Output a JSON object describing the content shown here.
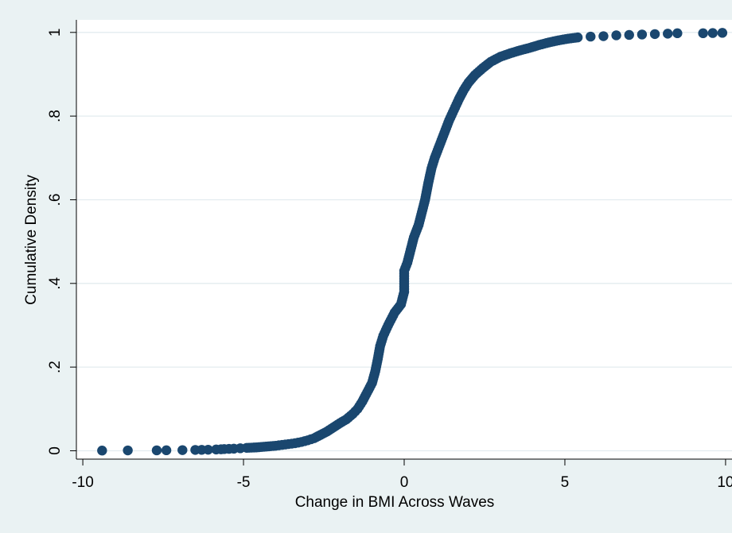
{
  "chart_data": {
    "type": "scatter",
    "title": "",
    "xlabel": "Change in BMI Across Waves",
    "ylabel": "Cumulative Density",
    "xlim": [
      -10.2,
      10.2
    ],
    "ylim": [
      -0.02,
      1.03
    ],
    "x_ticks": [
      -10,
      -5,
      0,
      5,
      10
    ],
    "x_tick_labels": [
      "-10",
      "-5",
      "0",
      "5",
      "10"
    ],
    "y_ticks": [
      0,
      0.2,
      0.4,
      0.6,
      0.8,
      1
    ],
    "y_tick_labels": [
      "0",
      ".2",
      ".4",
      ".6",
      ".8",
      "1"
    ],
    "grid": true,
    "legend": "none",
    "colors": {
      "background": "#eaf2f3",
      "plot_area": "#ffffff",
      "grid": "#e3ecef",
      "marker": "#1a476f"
    },
    "series": [
      {
        "points": [
          [
            -9.4,
            0.0005
          ],
          [
            -8.6,
            0.0008
          ],
          [
            -7.7,
            0.001
          ],
          [
            -7.4,
            0.0012
          ],
          [
            -6.9,
            0.0015
          ],
          [
            -6.5,
            0.002
          ],
          [
            -6.3,
            0.0022
          ],
          [
            -6.1,
            0.0025
          ],
          [
            -5.85,
            0.003
          ],
          [
            -5.7,
            0.0035
          ],
          [
            -5.6,
            0.004
          ],
          [
            -5.45,
            0.0045
          ],
          [
            -5.3,
            0.005
          ],
          [
            -5.1,
            0.006
          ],
          [
            -4.9,
            0.007
          ],
          [
            -4.6,
            0.008
          ],
          [
            -4.3,
            0.01
          ],
          [
            -4.0,
            0.012
          ],
          [
            -3.8,
            0.014
          ],
          [
            -3.6,
            0.016
          ],
          [
            -3.4,
            0.018
          ],
          [
            -3.2,
            0.021
          ],
          [
            -3.0,
            0.025
          ],
          [
            -2.8,
            0.03
          ],
          [
            -2.6,
            0.038
          ],
          [
            -2.4,
            0.046
          ],
          [
            -2.2,
            0.056
          ],
          [
            -2.0,
            0.066
          ],
          [
            -1.8,
            0.075
          ],
          [
            -1.6,
            0.088
          ],
          [
            -1.45,
            0.1
          ],
          [
            -1.3,
            0.118
          ],
          [
            -1.15,
            0.14
          ],
          [
            -1.0,
            0.162
          ],
          [
            -0.9,
            0.19
          ],
          [
            -0.82,
            0.22
          ],
          [
            -0.75,
            0.25
          ],
          [
            -0.65,
            0.275
          ],
          [
            -0.5,
            0.3
          ],
          [
            -0.3,
            0.33
          ],
          [
            -0.1,
            0.35
          ],
          [
            0.0,
            0.38
          ],
          [
            0.0,
            0.405
          ],
          [
            0.0,
            0.43
          ],
          [
            0.1,
            0.45
          ],
          [
            0.2,
            0.48
          ],
          [
            0.3,
            0.51
          ],
          [
            0.45,
            0.54
          ],
          [
            0.55,
            0.57
          ],
          [
            0.65,
            0.6
          ],
          [
            0.75,
            0.64
          ],
          [
            0.85,
            0.675
          ],
          [
            0.95,
            0.7
          ],
          [
            1.1,
            0.73
          ],
          [
            1.25,
            0.76
          ],
          [
            1.4,
            0.79
          ],
          [
            1.55,
            0.815
          ],
          [
            1.7,
            0.84
          ],
          [
            1.85,
            0.862
          ],
          [
            2.0,
            0.88
          ],
          [
            2.2,
            0.898
          ],
          [
            2.45,
            0.915
          ],
          [
            2.7,
            0.93
          ],
          [
            3.0,
            0.942
          ],
          [
            3.3,
            0.95
          ],
          [
            3.6,
            0.957
          ],
          [
            3.9,
            0.963
          ],
          [
            4.2,
            0.97
          ],
          [
            4.5,
            0.976
          ],
          [
            4.8,
            0.981
          ],
          [
            5.1,
            0.985
          ],
          [
            5.4,
            0.988
          ],
          [
            5.8,
            0.99
          ],
          [
            6.2,
            0.991
          ],
          [
            6.6,
            0.993
          ],
          [
            7.0,
            0.994
          ],
          [
            7.4,
            0.995
          ],
          [
            7.8,
            0.996
          ],
          [
            8.2,
            0.997
          ],
          [
            8.5,
            0.998
          ],
          [
            9.3,
            0.998
          ],
          [
            9.6,
            0.9985
          ],
          [
            9.9,
            0.999
          ]
        ]
      }
    ]
  }
}
